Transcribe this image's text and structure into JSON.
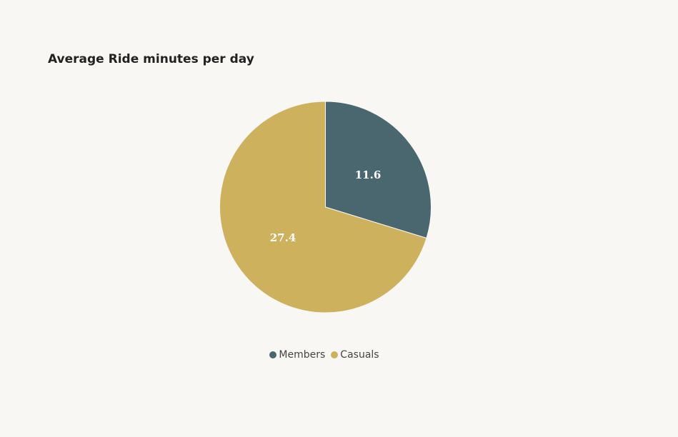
{
  "chart_data": {
    "type": "pie",
    "title": "Average Ride minutes per day",
    "categories": [
      "Members",
      "Casuals"
    ],
    "values": [
      11.6,
      27.4
    ],
    "colors": [
      "#4a666f",
      "#cdb15d"
    ],
    "data_labels": [
      "11.6",
      "27.4"
    ],
    "legend": {
      "position": "bottom-center",
      "entries": [
        "Members",
        "Casuals"
      ]
    }
  }
}
